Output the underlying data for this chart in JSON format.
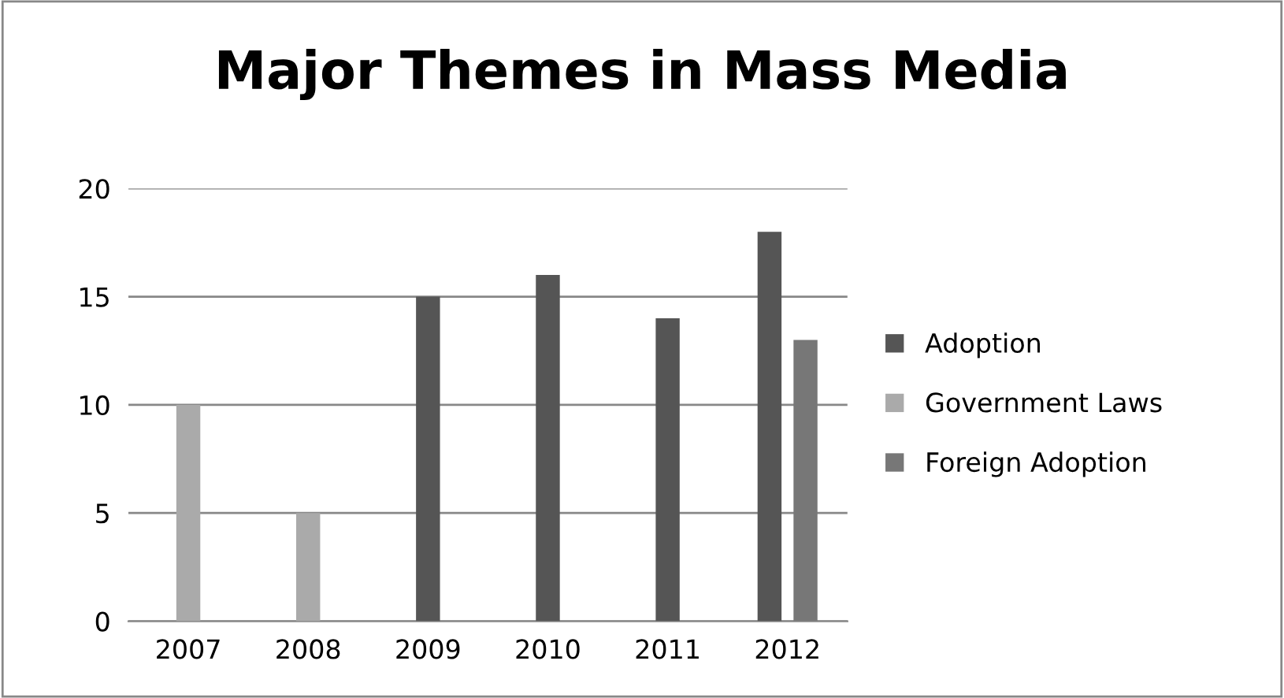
{
  "chart_data": {
    "type": "bar",
    "title": "Major Themes in Mass Media",
    "categories": [
      "2007",
      "2008",
      "2009",
      "2010",
      "2011",
      "2012"
    ],
    "series": [
      {
        "name": "Adoption",
        "color": "#555555",
        "values": [
          null,
          null,
          15,
          16,
          14,
          18
        ]
      },
      {
        "name": "Government Laws",
        "color": "#aaaaaa",
        "values": [
          10,
          5,
          null,
          null,
          null,
          null
        ]
      },
      {
        "name": "Foreign Adoption",
        "color": "#777777",
        "values": [
          null,
          null,
          null,
          null,
          null,
          13
        ]
      }
    ],
    "ylim": [
      0,
      20
    ],
    "yticks": [
      0,
      5,
      10,
      15,
      20
    ],
    "grid": "y",
    "legend": "right"
  }
}
